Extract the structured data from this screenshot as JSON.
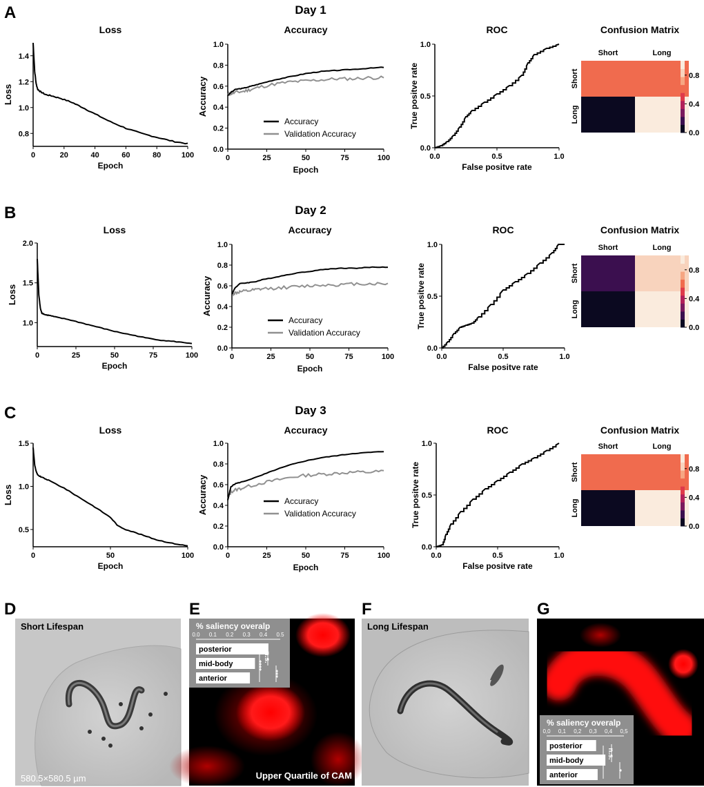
{
  "colors": {
    "accuracy": "#000000",
    "validation": "#909090",
    "cm_scale": [
      "#0b0920",
      "#3b0f4f",
      "#7a1a5e",
      "#b2205a",
      "#df3a4a",
      "#f06b4e",
      "#f6a682",
      "#f8d3bd",
      "#faebdd"
    ]
  },
  "rows": [
    {
      "letter": "A",
      "day_title": "Day 1",
      "loss": {
        "title": "Loss",
        "xlabel": "Epoch",
        "ylabel": "Loss",
        "xlim": [
          0,
          100
        ],
        "ylim": [
          0.7,
          1.5
        ],
        "xticks": [
          "0",
          "20",
          "40",
          "60",
          "80",
          "100"
        ],
        "yticks": [
          "0.8",
          "1.0",
          "1.2",
          "1.4"
        ],
        "x": [
          0,
          1,
          2,
          3,
          5,
          8,
          12,
          18,
          25,
          32,
          40,
          50,
          60,
          70,
          80,
          90,
          100
        ],
        "y": [
          1.5,
          1.28,
          1.18,
          1.14,
          1.12,
          1.1,
          1.09,
          1.07,
          1.04,
          1.0,
          0.95,
          0.89,
          0.84,
          0.8,
          0.77,
          0.74,
          0.72
        ]
      },
      "accuracy": {
        "title": "Accuracy",
        "xlabel": "Epoch",
        "ylabel": "Accuracy",
        "xlim": [
          0,
          100
        ],
        "ylim": [
          0,
          1.0
        ],
        "xticks": [
          "0",
          "25",
          "50",
          "75",
          "100"
        ],
        "yticks": [
          "0.0",
          "0.2",
          "0.4",
          "0.6",
          "0.8",
          "1.0"
        ],
        "legend": [
          "Accuracy",
          "Validation Accuracy"
        ],
        "x": [
          0,
          2,
          5,
          10,
          15,
          20,
          30,
          40,
          50,
          60,
          70,
          80,
          90,
          100
        ],
        "acc": [
          0.51,
          0.54,
          0.57,
          0.58,
          0.6,
          0.62,
          0.66,
          0.69,
          0.72,
          0.74,
          0.75,
          0.76,
          0.77,
          0.78
        ],
        "val": [
          0.52,
          0.53,
          0.54,
          0.55,
          0.57,
          0.59,
          0.62,
          0.64,
          0.65,
          0.66,
          0.67,
          0.67,
          0.68,
          0.68
        ]
      },
      "roc": {
        "title": "ROC",
        "xlabel": "False positve rate",
        "ylabel": "True positve rate",
        "xticks": [
          "0.0",
          "0.5",
          "1.0"
        ],
        "yticks": [
          "0.0",
          "0.5",
          "1.0"
        ],
        "x": [
          0,
          0.05,
          0.1,
          0.15,
          0.2,
          0.25,
          0.3,
          0.4,
          0.5,
          0.6,
          0.7,
          0.75,
          0.8,
          0.9,
          1.0
        ],
        "y": [
          0,
          0.02,
          0.06,
          0.12,
          0.2,
          0.3,
          0.36,
          0.44,
          0.52,
          0.6,
          0.7,
          0.82,
          0.9,
          0.96,
          1.0
        ]
      },
      "cm": {
        "title": "Confusion Matrix",
        "cols": [
          "Short",
          "Long"
        ],
        "rows": [
          "Short",
          "Long"
        ],
        "values": [
          [
            0.58,
            0.68
          ],
          [
            0.02,
            0.97
          ]
        ],
        "cbar_ticks": [
          "0.0",
          "0.4",
          "0.8"
        ]
      }
    },
    {
      "letter": "B",
      "day_title": "Day 2",
      "loss": {
        "title": "Loss",
        "xlabel": "Epoch",
        "ylabel": "Loss",
        "xlim": [
          0,
          100
        ],
        "ylim": [
          0.7,
          2.0
        ],
        "xticks": [
          "0",
          "25",
          "50",
          "75",
          "100"
        ],
        "yticks": [
          "1.0",
          "1.5",
          "2.0"
        ],
        "x": [
          0,
          1,
          2,
          3,
          5,
          8,
          12,
          20,
          30,
          40,
          50,
          60,
          70,
          80,
          90,
          100
        ],
        "y": [
          1.8,
          1.35,
          1.18,
          1.12,
          1.1,
          1.09,
          1.07,
          1.04,
          0.99,
          0.94,
          0.89,
          0.85,
          0.81,
          0.78,
          0.76,
          0.74
        ]
      },
      "accuracy": {
        "title": "Accuracy",
        "xlabel": "Epoch",
        "ylabel": "Accuracy",
        "xlim": [
          0,
          100
        ],
        "ylim": [
          0,
          1.0
        ],
        "xticks": [
          "0",
          "25",
          "50",
          "75",
          "100"
        ],
        "yticks": [
          "0.0",
          "0.2",
          "0.4",
          "0.6",
          "0.8",
          "1.0"
        ],
        "legend": [
          "Accuracy",
          "Validation Accuracy"
        ],
        "x": [
          0,
          2,
          5,
          10,
          15,
          20,
          30,
          40,
          50,
          60,
          70,
          80,
          90,
          100
        ],
        "acc": [
          0.52,
          0.58,
          0.62,
          0.63,
          0.64,
          0.66,
          0.69,
          0.72,
          0.74,
          0.76,
          0.77,
          0.77,
          0.78,
          0.78
        ],
        "val": [
          0.52,
          0.53,
          0.54,
          0.55,
          0.56,
          0.57,
          0.58,
          0.59,
          0.6,
          0.61,
          0.61,
          0.62,
          0.62,
          0.62
        ]
      },
      "roc": {
        "title": "ROC",
        "xlabel": "False positve rate",
        "ylabel": "True positve rate",
        "xticks": [
          "0.0",
          "0.5",
          "1.0"
        ],
        "yticks": [
          "0.0",
          "0.5",
          "1.0"
        ],
        "x": [
          0,
          0.05,
          0.1,
          0.15,
          0.2,
          0.25,
          0.3,
          0.4,
          0.5,
          0.6,
          0.7,
          0.8,
          0.9,
          0.95,
          1.0
        ],
        "y": [
          0,
          0.06,
          0.14,
          0.2,
          0.22,
          0.24,
          0.3,
          0.42,
          0.56,
          0.64,
          0.72,
          0.82,
          0.92,
          1.0,
          1.0
        ]
      },
      "cm": {
        "title": "Confusion Matrix",
        "cols": [
          "Short",
          "Long"
        ],
        "rows": [
          "Short",
          "Long"
        ],
        "values": [
          [
            0.12,
            0.87
          ],
          [
            0.02,
            0.97
          ]
        ],
        "cbar_ticks": [
          "0.0",
          "0.4",
          "0.8"
        ]
      }
    },
    {
      "letter": "C",
      "day_title": "Day 3",
      "loss": {
        "title": "Loss",
        "xlabel": "Epoch",
        "ylabel": "Loss",
        "xlim": [
          0,
          100
        ],
        "ylim": [
          0.3,
          1.5
        ],
        "xticks": [
          "0",
          "50",
          "100"
        ],
        "yticks": [
          "0.5",
          "1.0",
          "1.5"
        ],
        "x": [
          0,
          1,
          2,
          3,
          5,
          10,
          20,
          30,
          40,
          50,
          55,
          60,
          70,
          80,
          90,
          100
        ],
        "y": [
          1.45,
          1.25,
          1.17,
          1.13,
          1.11,
          1.07,
          0.98,
          0.87,
          0.76,
          0.64,
          0.54,
          0.5,
          0.44,
          0.38,
          0.34,
          0.31
        ]
      },
      "accuracy": {
        "title": "Accuracy",
        "xlabel": "Epoch",
        "ylabel": "Accuracy",
        "xlim": [
          0,
          100
        ],
        "ylim": [
          0,
          1.0
        ],
        "xticks": [
          "0",
          "25",
          "50",
          "75",
          "100"
        ],
        "yticks": [
          "0.0",
          "0.2",
          "0.4",
          "0.6",
          "0.8",
          "1.0"
        ],
        "legend": [
          "Accuracy",
          "Validation Accuracy"
        ],
        "x": [
          0,
          2,
          5,
          10,
          20,
          30,
          40,
          50,
          60,
          70,
          80,
          90,
          100
        ],
        "acc": [
          0.45,
          0.58,
          0.61,
          0.63,
          0.68,
          0.74,
          0.79,
          0.83,
          0.86,
          0.88,
          0.9,
          0.91,
          0.92
        ],
        "val": [
          0.46,
          0.53,
          0.55,
          0.57,
          0.61,
          0.64,
          0.67,
          0.69,
          0.7,
          0.71,
          0.72,
          0.72,
          0.73
        ]
      },
      "roc": {
        "title": "ROC",
        "xlabel": "False positve rate",
        "ylabel": "True positve rate",
        "xticks": [
          "0.0",
          "0.5",
          "1.0"
        ],
        "yticks": [
          "0.0",
          "0.5",
          "1.0"
        ],
        "x": [
          0,
          0.05,
          0.08,
          0.12,
          0.2,
          0.3,
          0.4,
          0.5,
          0.6,
          0.7,
          0.8,
          0.9,
          1.0
        ],
        "y": [
          0,
          0.02,
          0.12,
          0.22,
          0.34,
          0.46,
          0.56,
          0.64,
          0.72,
          0.8,
          0.86,
          0.93,
          1.0
        ]
      },
      "cm": {
        "title": "Confusion Matrix",
        "cols": [
          "Short",
          "Long"
        ],
        "rows": [
          "Short",
          "Long"
        ],
        "values": [
          [
            0.68,
            0.58
          ],
          [
            0.02,
            0.97
          ]
        ],
        "cbar_ticks": [
          "0.0",
          "0.4",
          "0.8"
        ]
      }
    }
  ],
  "images": {
    "D": {
      "letter": "D",
      "label": "Short Lifespan",
      "scale": "580.5×580.5 µm"
    },
    "E": {
      "letter": "E",
      "caption": "Upper Quartile of CAM",
      "overlap": {
        "title": "% saliency overalp",
        "ticks": [
          "0.0",
          "0.1",
          "0.2",
          "0.3",
          "0.4",
          "0.5"
        ],
        "bars": [
          {
            "label": "posterior",
            "value": 0.43
          },
          {
            "label": "mid-body",
            "value": 0.35
          },
          {
            "label": "anterior",
            "value": 0.32
          }
        ],
        "sig": [
          "n.s.",
          "****",
          "***"
        ]
      }
    },
    "F": {
      "letter": "F",
      "label": "Long Lifespan"
    },
    "G": {
      "letter": "G",
      "overlap": {
        "title": "% saliency overalp",
        "ticks": [
          "0,0",
          "0,1",
          "0,2",
          "0,3",
          "0,4",
          "0,5"
        ],
        "bars": [
          {
            "label": "posterior",
            "value": 0.32
          },
          {
            "label": "mid-body",
            "value": 0.38
          },
          {
            "label": "anterior",
            "value": 0.33
          }
        ],
        "sig": [
          "n.s.",
          "**",
          "*"
        ]
      }
    }
  },
  "chart_data": [
    {
      "type": "line",
      "title": "Day 1 Loss",
      "xlabel": "Epoch",
      "ylabel": "Loss",
      "x": [
        0,
        1,
        2,
        3,
        5,
        8,
        12,
        18,
        25,
        32,
        40,
        50,
        60,
        70,
        80,
        90,
        100
      ],
      "y": [
        1.5,
        1.28,
        1.18,
        1.14,
        1.12,
        1.1,
        1.09,
        1.07,
        1.04,
        1.0,
        0.95,
        0.89,
        0.84,
        0.8,
        0.77,
        0.74,
        0.72
      ]
    },
    {
      "type": "line",
      "title": "Day 1 Accuracy",
      "xlabel": "Epoch",
      "ylabel": "Accuracy",
      "x": [
        0,
        2,
        5,
        10,
        15,
        20,
        30,
        40,
        50,
        60,
        70,
        80,
        90,
        100
      ],
      "series": [
        {
          "name": "Accuracy",
          "values": [
            0.51,
            0.54,
            0.57,
            0.58,
            0.6,
            0.62,
            0.66,
            0.69,
            0.72,
            0.74,
            0.75,
            0.76,
            0.77,
            0.78
          ]
        },
        {
          "name": "Validation Accuracy",
          "values": [
            0.52,
            0.53,
            0.54,
            0.55,
            0.57,
            0.59,
            0.62,
            0.64,
            0.65,
            0.66,
            0.67,
            0.67,
            0.68,
            0.68
          ]
        }
      ]
    },
    {
      "type": "heatmap",
      "title": "Day 1 Confusion Matrix",
      "rows": [
        "Short",
        "Long"
      ],
      "cols": [
        "Short",
        "Long"
      ],
      "values": [
        [
          0.58,
          0.68
        ],
        [
          0.02,
          0.97
        ]
      ]
    },
    {
      "type": "line",
      "title": "Day 2 Accuracy",
      "xlabel": "Epoch",
      "ylabel": "Accuracy",
      "x": [
        0,
        2,
        5,
        10,
        15,
        20,
        30,
        40,
        50,
        60,
        70,
        80,
        90,
        100
      ],
      "series": [
        {
          "name": "Accuracy",
          "values": [
            0.52,
            0.58,
            0.62,
            0.63,
            0.64,
            0.66,
            0.69,
            0.72,
            0.74,
            0.76,
            0.77,
            0.77,
            0.78,
            0.78
          ]
        },
        {
          "name": "Validation Accuracy",
          "values": [
            0.52,
            0.53,
            0.54,
            0.55,
            0.56,
            0.57,
            0.58,
            0.59,
            0.6,
            0.61,
            0.61,
            0.62,
            0.62,
            0.62
          ]
        }
      ]
    },
    {
      "type": "heatmap",
      "title": "Day 2 Confusion Matrix",
      "rows": [
        "Short",
        "Long"
      ],
      "cols": [
        "Short",
        "Long"
      ],
      "values": [
        [
          0.12,
          0.87
        ],
        [
          0.02,
          0.97
        ]
      ]
    },
    {
      "type": "line",
      "title": "Day 3 Accuracy",
      "xlabel": "Epoch",
      "ylabel": "Accuracy",
      "x": [
        0,
        2,
        5,
        10,
        20,
        30,
        40,
        50,
        60,
        70,
        80,
        90,
        100
      ],
      "series": [
        {
          "name": "Accuracy",
          "values": [
            0.45,
            0.58,
            0.61,
            0.63,
            0.68,
            0.74,
            0.79,
            0.83,
            0.86,
            0.88,
            0.9,
            0.91,
            0.92
          ]
        },
        {
          "name": "Validation Accuracy",
          "values": [
            0.46,
            0.53,
            0.55,
            0.57,
            0.61,
            0.64,
            0.67,
            0.69,
            0.7,
            0.71,
            0.72,
            0.72,
            0.73
          ]
        }
      ]
    },
    {
      "type": "heatmap",
      "title": "Day 3 Confusion Matrix",
      "rows": [
        "Short",
        "Long"
      ],
      "cols": [
        "Short",
        "Long"
      ],
      "values": [
        [
          0.68,
          0.58
        ],
        [
          0.02,
          0.97
        ]
      ]
    },
    {
      "type": "bar",
      "title": "% saliency overalp (E)",
      "categories": [
        "posterior",
        "mid-body",
        "anterior"
      ],
      "values": [
        0.43,
        0.35,
        0.32
      ]
    },
    {
      "type": "bar",
      "title": "% saliency overalp (G)",
      "categories": [
        "posterior",
        "mid-body",
        "anterior"
      ],
      "values": [
        0.32,
        0.38,
        0.33
      ]
    }
  ]
}
